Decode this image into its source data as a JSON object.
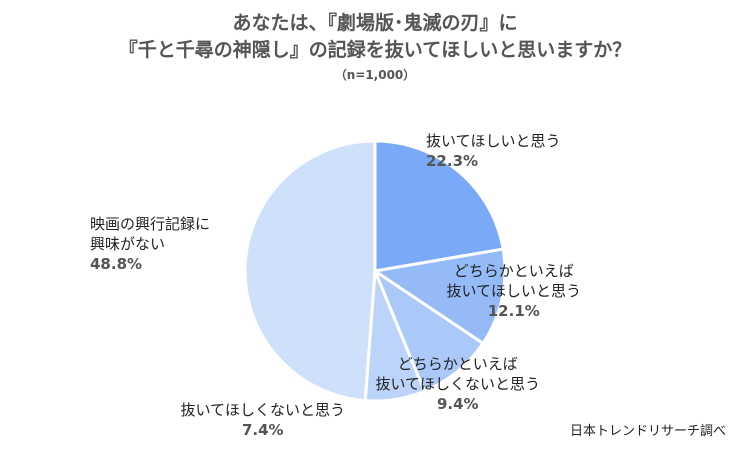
{
  "title": {
    "line1": "あなたは、『劇場版･鬼滅の刃』に",
    "line2": "『千と千尋の神隠し』の記録を抜いてほしいと思いますか？",
    "sample": "（n=1,000）"
  },
  "source": "日本トレンドリサーチ調べ",
  "chart_data": {
    "type": "pie",
    "title": "あなたは、『劇場版･鬼滅の刃』に『千と千尋の神隠し』の記録を抜いてほしいと思いますか？",
    "subtitle": "（n=1,000）",
    "start_angle_deg": 0,
    "direction": "clockwise",
    "slices": [
      {
        "label_lines": [
          "抜いてほしいと思う"
        ],
        "value": 22.3,
        "value_label": "22.3%",
        "color": "#7aaaf7"
      },
      {
        "label_lines": [
          "どちらかといえば",
          "抜いてほしいと思う"
        ],
        "value": 12.1,
        "value_label": "12.1%",
        "color": "#94bbf8"
      },
      {
        "label_lines": [
          "どちらかといえば",
          "抜いてほしくないと思う"
        ],
        "value": 9.4,
        "value_label": "9.4%",
        "color": "#aac8f8"
      },
      {
        "label_lines": [
          "抜いてほしくないと思う"
        ],
        "value": 7.4,
        "value_label": "7.4%",
        "color": "#bcd4f9"
      },
      {
        "label_lines": [
          "映画の興行記録に",
          "興味がない"
        ],
        "value": 48.8,
        "value_label": "48.8%",
        "color": "#cfe0fb"
      }
    ]
  }
}
